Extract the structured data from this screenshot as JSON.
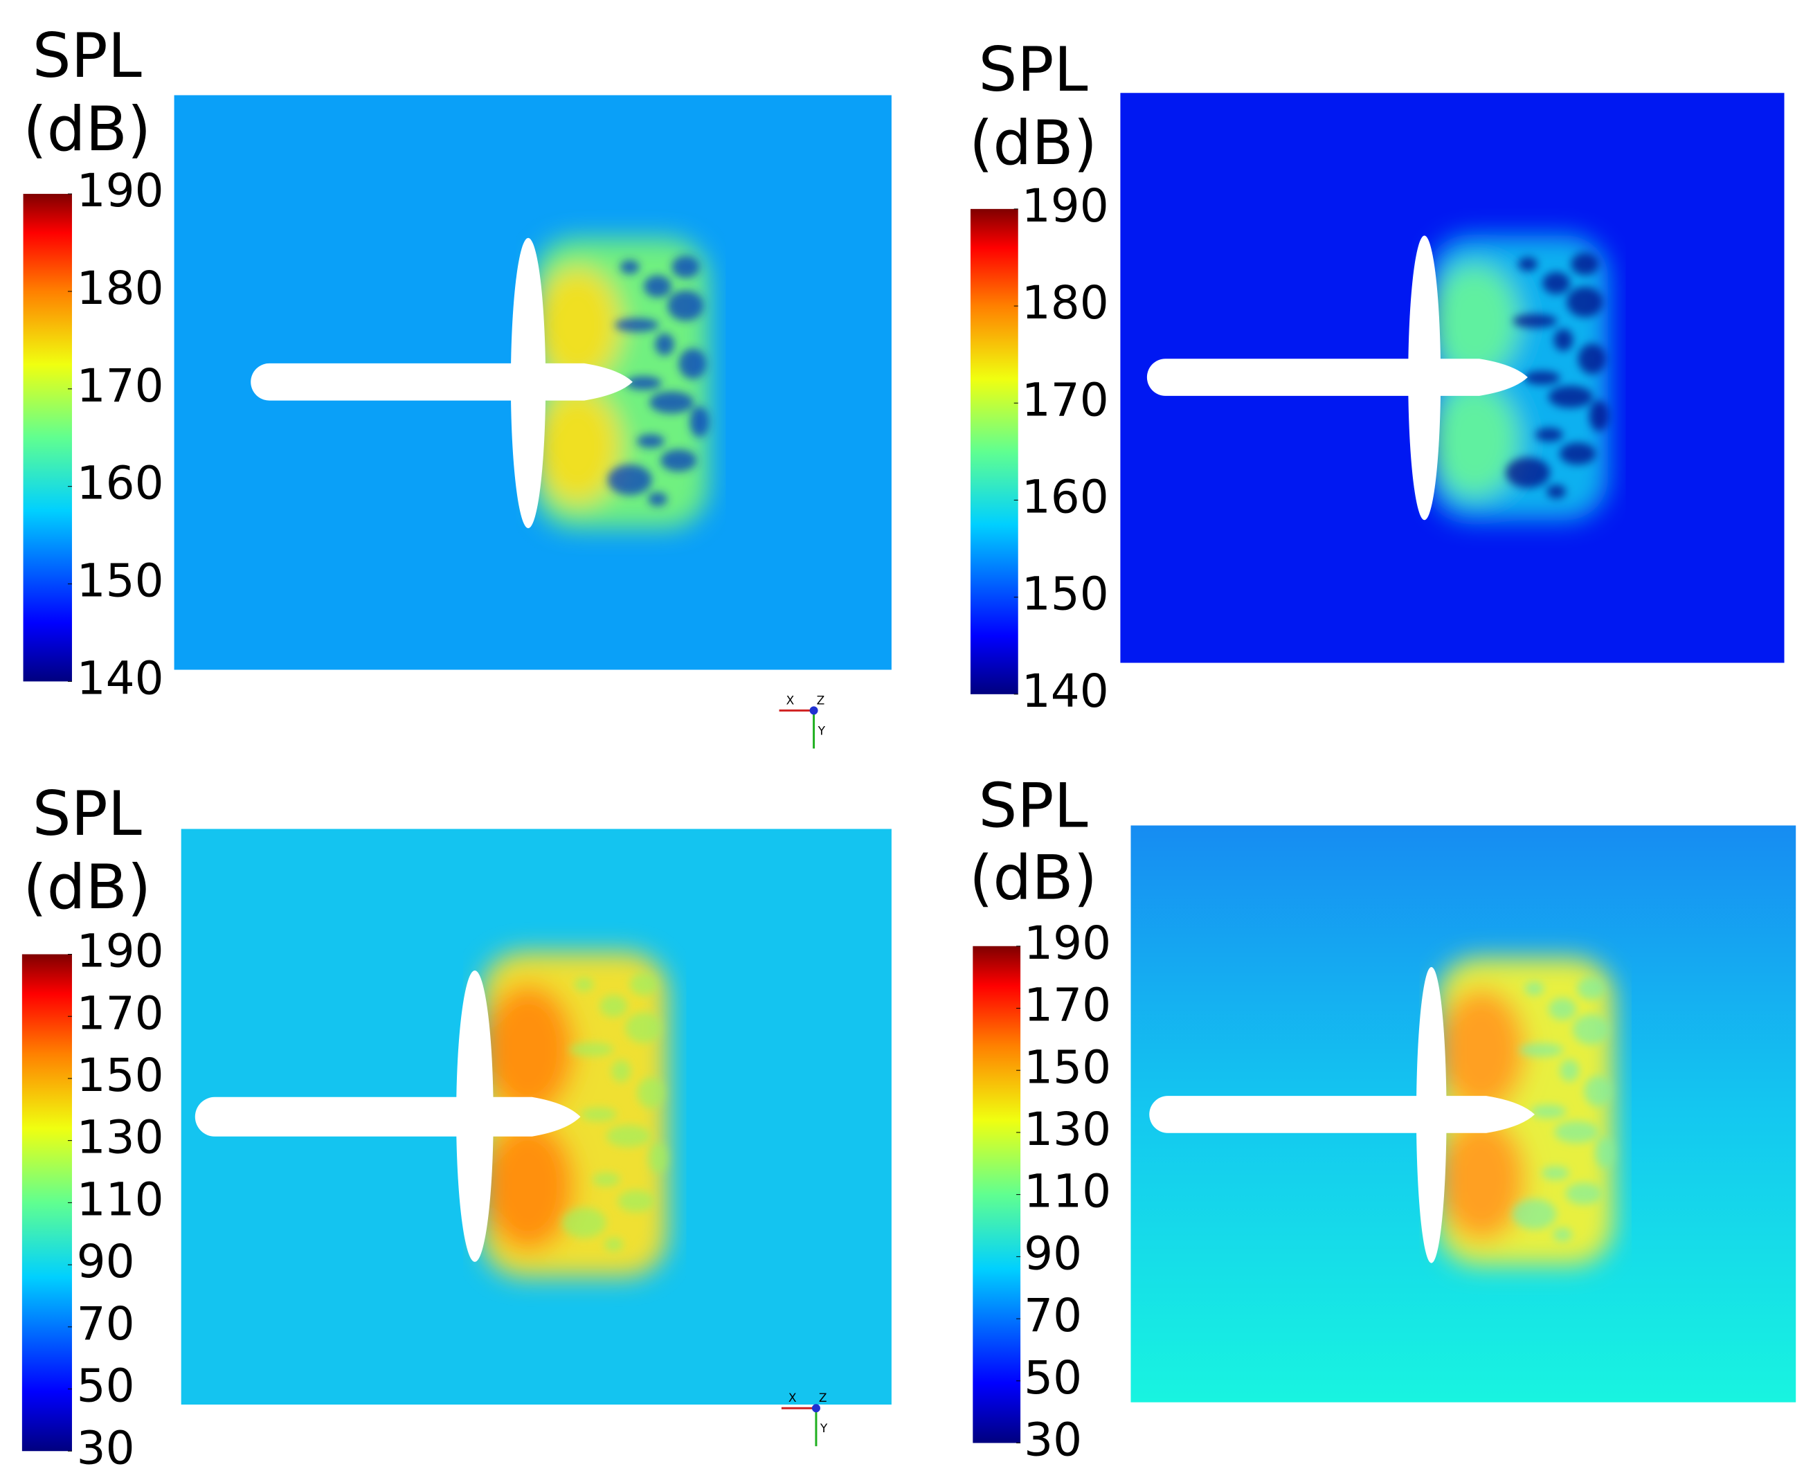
{
  "panels": [
    {
      "colorbar": {
        "title": [
          "SPL",
          "(dB)"
        ],
        "ticks": [
          190,
          180,
          170,
          160,
          150,
          140
        ]
      },
      "axes": [
        "X",
        "Z",
        "Y"
      ]
    },
    {
      "colorbar": {
        "title": [
          "SPL",
          "(dB)"
        ],
        "ticks": [
          190,
          180,
          170,
          160,
          150,
          140
        ]
      }
    },
    {
      "colorbar": {
        "title": [
          "SPL",
          "(dB)"
        ],
        "ticks": [
          190,
          170,
          150,
          130,
          110,
          90,
          70,
          50,
          30
        ]
      },
      "axes": [
        "X",
        "Z",
        "Y"
      ]
    },
    {
      "colorbar": {
        "title": [
          "SPL",
          "(dB)"
        ],
        "ticks": [
          190,
          170,
          150,
          130,
          110,
          90,
          70,
          50,
          30
        ]
      }
    }
  ]
}
